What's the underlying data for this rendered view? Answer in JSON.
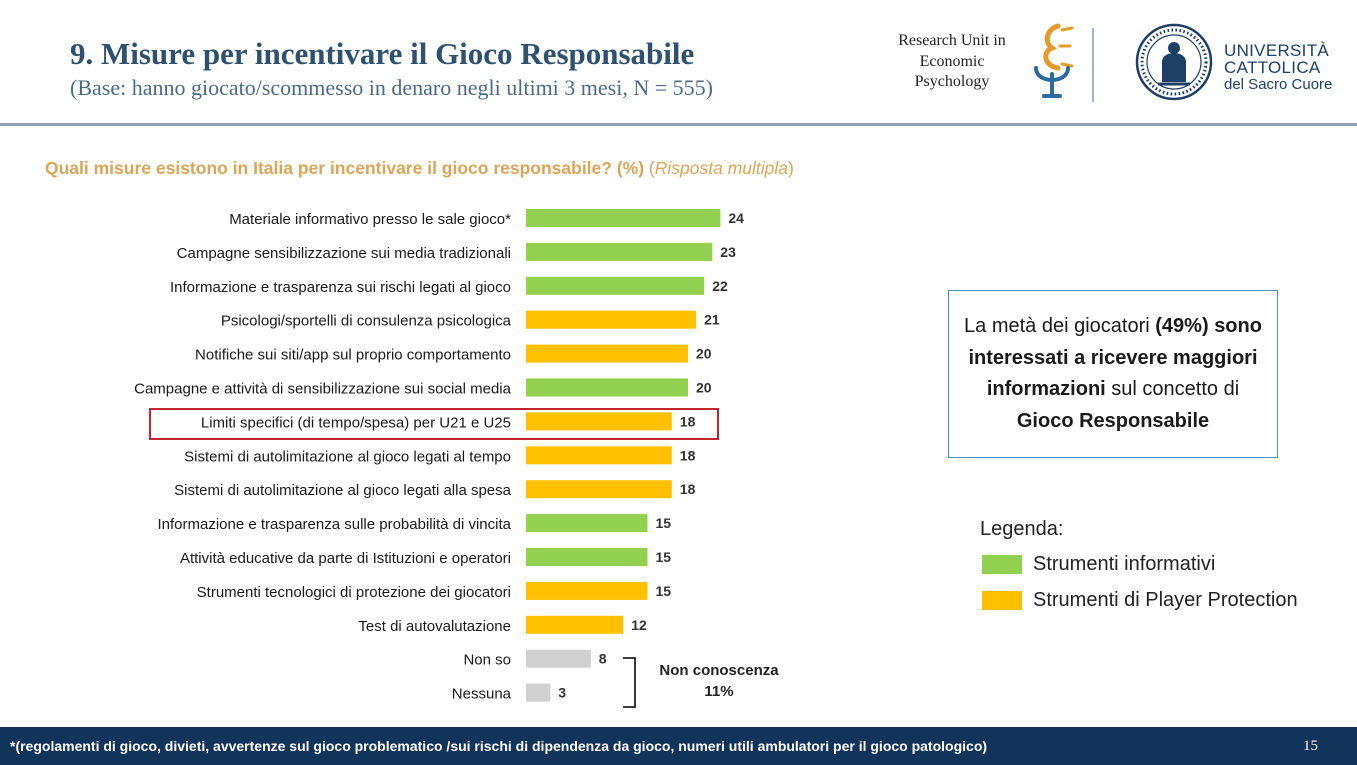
{
  "header": {
    "title": "9. Misure per incentivare il Gioco Responsabile",
    "subtitle": "(Base: hanno giocato/scommesso in denaro negli ultimi 3 mesi, N = 555)",
    "research_unit_lines": [
      "Research Unit in",
      "Economic",
      "Psychology"
    ],
    "university_lines": [
      "UNIVERSITÀ",
      "CATTOLICA",
      "del Sacro Cuore"
    ]
  },
  "colors": {
    "informativi": "#92d050",
    "player_protection": "#ffc000",
    "non_conoscenza": "#d0d0d0",
    "highlight": "#c0262c",
    "footer": "#12335a"
  },
  "chart_data": {
    "type": "bar",
    "orientation": "horizontal",
    "title": "Quali misure esistono in Italia per incentivare il gioco responsabile? (%) (Risposta multipla)",
    "title_parts": {
      "question": "Quali misure esistono in Italia per incentivare il gioco responsabile? (%)",
      "note_prefix": " (",
      "note_italic": "Risposta multipla",
      "note_suffix": ")"
    },
    "unit": "%",
    "categories": [
      "Materiale informativo presso le sale gioco*",
      "Campagne sensibilizzazione sui media tradizionali",
      "Informazione e trasparenza sui rischi legati al gioco",
      "Psicologi/sportelli di consulenza psicologica",
      "Notifiche sui siti/app sul proprio comportamento",
      "Campagne e attività di sensibilizzazione sui social media",
      "Limiti specifici (di tempo/spesa) per U21 e U25",
      "Sistemi di autolimitazione al gioco legati al tempo",
      "Sistemi di autolimitazione al gioco legati alla spesa",
      "Informazione e trasparenza sulle probabilità di vincita",
      "Attività educative da parte di Istituzioni e operatori",
      "Strumenti tecnologici di protezione dei giocatori",
      "Test di autovalutazione",
      "Non so",
      "Nessuna"
    ],
    "values": [
      24,
      23,
      22,
      21,
      20,
      20,
      18,
      18,
      18,
      15,
      15,
      15,
      12,
      8,
      3
    ],
    "groups": [
      "informativi",
      "informativi",
      "informativi",
      "player_protection",
      "player_protection",
      "informativi",
      "player_protection",
      "player_protection",
      "player_protection",
      "informativi",
      "informativi",
      "player_protection",
      "player_protection",
      "non_conoscenza",
      "non_conoscenza"
    ],
    "highlighted": "Limiti specifici (di tempo/spesa) per U21 e U25",
    "bracket_label_lines": [
      "Non conoscenza",
      "11%"
    ]
  },
  "callout": {
    "t1": "La metà dei giocatori ",
    "b1": "(49%)",
    "t2": " ",
    "b2": "sono interessati a ricevere maggiori informazioni",
    "t3": " sul concetto di ",
    "b3": "Gioco Responsabile"
  },
  "legend": {
    "title": "Legenda:",
    "items": [
      {
        "label": "Strumenti informativi",
        "key": "informativi"
      },
      {
        "label": "Strumenti di Player Protection",
        "key": "player_protection"
      }
    ]
  },
  "footer": {
    "note": "*(regolamenti di gioco, divieti, avvertenze sul gioco problematico /sui rischi di dipendenza da gioco, numeri utili ambulatori per il gioco patologico)",
    "page": "15"
  }
}
